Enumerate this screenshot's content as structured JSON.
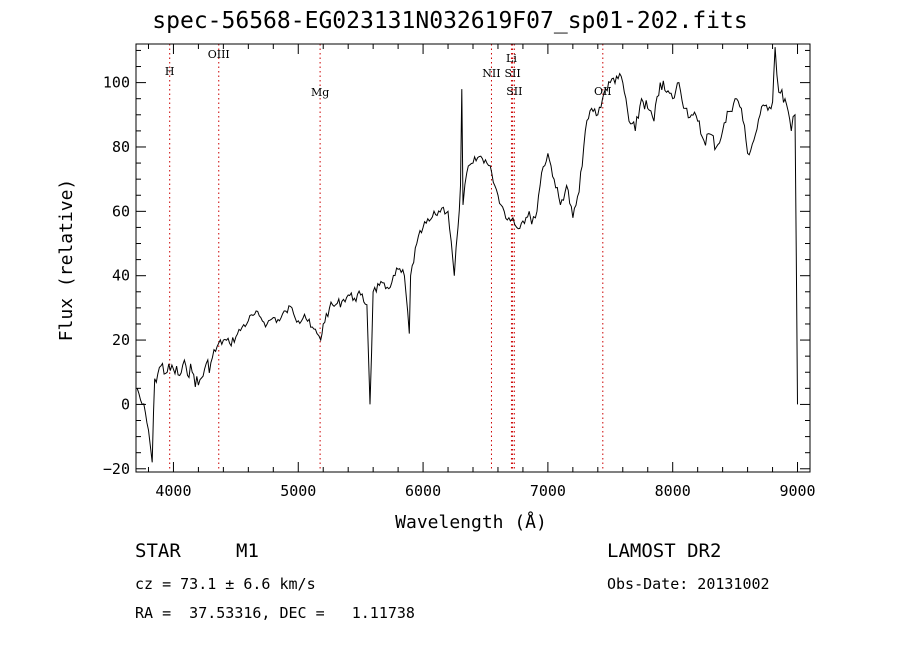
{
  "chart_data": {
    "type": "line",
    "title": "spec-56568-EG023131N032619F07_sp01-202.fits",
    "xlabel": "Wavelength (Å)",
    "ylabel": "Flux (relative)",
    "xlim": [
      3700,
      9100
    ],
    "ylim": [
      -21,
      112
    ],
    "xticks": [
      4000,
      5000,
      6000,
      7000,
      8000,
      9000
    ],
    "yticks": [
      -20,
      0,
      20,
      40,
      60,
      80,
      100
    ],
    "grid": false,
    "spectrum_color": "#000000",
    "line_marker_color": "#cc0000",
    "series": [
      {
        "x": [
          3710,
          3750,
          3800,
          3830,
          3850,
          3900,
          3950,
          4000,
          4050,
          4100,
          4150,
          4200,
          4250,
          4300,
          4350,
          4400,
          4450,
          4500,
          4550,
          4600,
          4650,
          4700,
          4750,
          4800,
          4850,
          4900,
          4950,
          5000,
          5050,
          5100,
          5150,
          5180,
          5200,
          5250,
          5300,
          5350,
          5400,
          5450,
          5500,
          5550,
          5575,
          5600,
          5650,
          5700,
          5750,
          5800,
          5850,
          5890,
          5900,
          5950,
          6000,
          6050,
          6100,
          6150,
          6200,
          6250,
          6280,
          6300,
          6310,
          6320,
          6350,
          6400,
          6450,
          6500,
          6550,
          6600,
          6650,
          6700,
          6720,
          6750,
          6800,
          6850,
          6870,
          6900,
          6950,
          7000,
          7050,
          7100,
          7150,
          7200,
          7250,
          7300,
          7350,
          7400,
          7450,
          7500,
          7550,
          7600,
          7650,
          7700,
          7750,
          7800,
          7850,
          7900,
          7950,
          8000,
          8050,
          8100,
          8150,
          8200,
          8250,
          8300,
          8350,
          8400,
          8450,
          8500,
          8550,
          8600,
          8650,
          8700,
          8750,
          8800,
          8820,
          8850,
          8900,
          8950,
          8980,
          9000
        ],
        "y": [
          5,
          0,
          -8,
          -18,
          8,
          12,
          10,
          11,
          9,
          12,
          10,
          6,
          11,
          13,
          18,
          20,
          19,
          21,
          24,
          26,
          28,
          27,
          25,
          27,
          26,
          29,
          30,
          26,
          28,
          24,
          22,
          20,
          25,
          30,
          31,
          32,
          34,
          33,
          34,
          31,
          0,
          35,
          37,
          36,
          38,
          42,
          40,
          22,
          40,
          50,
          55,
          57,
          59,
          61,
          60,
          40,
          55,
          68,
          98,
          62,
          72,
          75,
          77,
          76,
          72,
          65,
          60,
          57,
          58,
          55,
          57,
          60,
          56,
          58,
          72,
          78,
          70,
          62,
          68,
          58,
          66,
          85,
          92,
          90,
          97,
          100,
          102,
          100,
          88,
          85,
          95,
          92,
          88,
          100,
          97,
          95,
          100,
          92,
          90,
          88,
          82,
          84,
          80,
          85,
          91,
          95,
          92,
          78,
          82,
          90,
          93,
          94,
          111,
          97,
          95,
          85,
          90,
          0
        ]
      }
    ],
    "annotations": [
      {
        "label": "H",
        "x": 3970
      },
      {
        "label": "OIII",
        "x": 4363
      },
      {
        "label": "Mg",
        "x": 5175
      },
      {
        "label": "NII",
        "x": 6548
      },
      {
        "label": "Li",
        "x": 6708
      },
      {
        "label": "SII",
        "x": 6717
      },
      {
        "label": "SII",
        "x": 6731
      },
      {
        "label": "OII",
        "x": 7440
      }
    ]
  },
  "info": {
    "class_label": "STAR",
    "subclass_label": "M1",
    "survey": "LAMOST DR2",
    "cz": "cz = 73.1 ± 6.6 km/s",
    "obs_date": "Obs-Date: 20131002",
    "coords": "RA =  37.53316, DEC =   1.11738"
  }
}
